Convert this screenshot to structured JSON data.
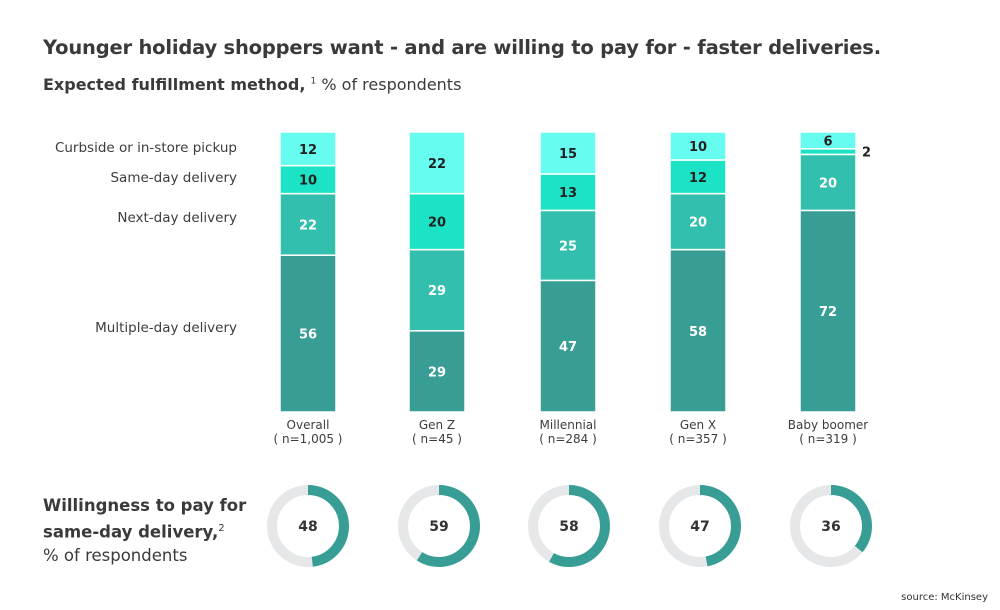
{
  "title": "Younger holiday shoppers want - and are willing to pay for - faster deliveries.",
  "subtitle": {
    "bold": "Expected fulfillment method,",
    "sup": "1",
    "rest": " % of respondents"
  },
  "donut_title": {
    "line1": "Willingness to pay for",
    "line2": "same-day delivery,",
    "sup": "2",
    "line3": "% of respondents"
  },
  "source": "source: McKinsey",
  "colors": {
    "Curbside or in-store pickup": "#66fdf0",
    "Same-day delivery": "#1de3c6",
    "Next-day delivery": "#33bfae",
    "Multiple-day delivery": "#389e95",
    "donut_track": "#e6e7e8",
    "donut_fill": "#389e95"
  },
  "chart_data": [
    {
      "type": "bar",
      "stacked": true,
      "categories": [
        "Overall",
        "Gen Z",
        "Millennial",
        "Gen X",
        "Baby boomer"
      ],
      "category_n": [
        "( n=1,005 )",
        "( n=45 )",
        "( n=284 )",
        "( n=357 )",
        "( n=319 )"
      ],
      "series": [
        {
          "name": "Multiple-day delivery",
          "values": [
            56,
            29,
            47,
            58,
            72
          ]
        },
        {
          "name": "Next-day delivery",
          "values": [
            22,
            29,
            25,
            20,
            20
          ]
        },
        {
          "name": "Same-day delivery",
          "values": [
            10,
            20,
            13,
            12,
            2
          ]
        },
        {
          "name": "Curbside or in-store pickup",
          "values": [
            12,
            22,
            15,
            10,
            6
          ]
        }
      ],
      "ylim": [
        0,
        100
      ],
      "grid": false,
      "legend": "left"
    },
    {
      "type": "pie",
      "donut": true,
      "categories": [
        "Overall",
        "Gen Z",
        "Millennial",
        "Gen X",
        "Baby boomer"
      ],
      "values": [
        48,
        59,
        58,
        47,
        36
      ]
    }
  ]
}
